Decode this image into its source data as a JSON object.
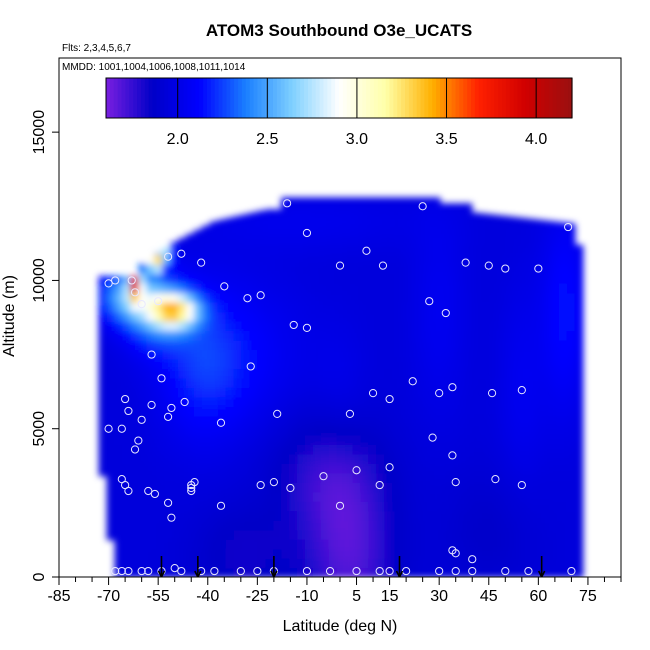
{
  "chart_data": {
    "type": "heatmap",
    "title": "ATOM3 Southbound O3e_UCATS",
    "notes": {
      "flights": "Flts: 2,3,4,5,6,7",
      "dates": "MMDD: 1001,1004,1006,1008,1011,1014"
    },
    "xlabel": "Latitude (deg N)",
    "ylabel": "Altitude (m)",
    "xlim": [
      -85,
      85
    ],
    "ylim": [
      0,
      17500
    ],
    "x_ticks": [
      -85,
      -70,
      -55,
      -40,
      -25,
      -10,
      5,
      15,
      30,
      45,
      60,
      75
    ],
    "x_minor_ticks": [
      -80,
      -75,
      -65,
      -60,
      -50,
      -45,
      -35,
      -30,
      -20,
      -15,
      -5,
      0,
      10,
      20,
      25,
      35,
      40,
      50,
      55,
      65,
      70,
      80,
      85
    ],
    "y_ticks": [
      0,
      5000,
      10000,
      15000
    ],
    "colorbar": {
      "range": [
        1.6,
        4.2
      ],
      "ticks": [
        "2.0",
        "2.5",
        "3.0",
        "3.5",
        "4.0"
      ],
      "colors": [
        "#7a1fe0",
        "#0000c8",
        "#0000ff",
        "#1a7fff",
        "#7fd0ff",
        "#ffffff",
        "#ffffa8",
        "#ffb000",
        "#ff2000",
        "#d00000",
        "#9a1010"
      ]
    },
    "profile_latitudes": [
      -54,
      -43,
      -20,
      18,
      61
    ],
    "sample_points": [
      [
        -68,
        200
      ],
      [
        -66,
        200
      ],
      [
        -64,
        200
      ],
      [
        -60,
        200
      ],
      [
        -58,
        200
      ],
      [
        -54,
        200
      ],
      [
        -50,
        300
      ],
      [
        -48,
        200
      ],
      [
        -42,
        200
      ],
      [
        -38,
        200
      ],
      [
        -30,
        200
      ],
      [
        -25,
        200
      ],
      [
        -20,
        200
      ],
      [
        -10,
        200
      ],
      [
        -3,
        200
      ],
      [
        5,
        200
      ],
      [
        12,
        200
      ],
      [
        15,
        200
      ],
      [
        20,
        200
      ],
      [
        30,
        200
      ],
      [
        35,
        200
      ],
      [
        40,
        200
      ],
      [
        50,
        200
      ],
      [
        57,
        200
      ],
      [
        70,
        200
      ],
      [
        -70,
        5000
      ],
      [
        -66,
        5000
      ],
      [
        -65,
        6000
      ],
      [
        -64,
        5600
      ],
      [
        -62,
        4300
      ],
      [
        -61,
        4600
      ],
      [
        -60,
        5300
      ],
      [
        -57,
        5800
      ],
      [
        -52,
        5400
      ],
      [
        -51,
        5700
      ],
      [
        -47,
        5900
      ],
      [
        -45,
        3100
      ],
      [
        -45,
        2900
      ],
      [
        -36,
        5200
      ],
      [
        -27,
        7100
      ],
      [
        -19,
        5500
      ],
      [
        -66,
        3300
      ],
      [
        -65,
        3100
      ],
      [
        -64,
        2900
      ],
      [
        -58,
        2900
      ],
      [
        -56,
        2800
      ],
      [
        -52,
        2500
      ],
      [
        -51,
        2000
      ],
      [
        -44,
        3200
      ],
      [
        -45,
        3000
      ],
      [
        -36,
        2400
      ],
      [
        -24,
        3100
      ],
      [
        -20,
        3200
      ],
      [
        -15,
        3000
      ],
      [
        -5,
        3400
      ],
      [
        0,
        2400
      ],
      [
        5,
        3600
      ],
      [
        12,
        3100
      ],
      [
        15,
        3700
      ],
      [
        28,
        4700
      ],
      [
        34,
        4100
      ],
      [
        35,
        3200
      ],
      [
        47,
        3300
      ],
      [
        55,
        3100
      ],
      [
        40,
        600
      ],
      [
        34,
        900
      ],
      [
        35,
        800
      ],
      [
        -68,
        10000
      ],
      [
        -70,
        9900
      ],
      [
        -63,
        10000
      ],
      [
        -62,
        9600
      ],
      [
        -60,
        9200
      ],
      [
        -55,
        9300
      ],
      [
        -52,
        10800
      ],
      [
        -48,
        10900
      ],
      [
        -42,
        10600
      ],
      [
        -35,
        9800
      ],
      [
        -28,
        9400
      ],
      [
        -24,
        9500
      ],
      [
        -16,
        12600
      ],
      [
        -10,
        11600
      ],
      [
        -14,
        8500
      ],
      [
        -10,
        8400
      ],
      [
        0,
        10500
      ],
      [
        8,
        11000
      ],
      [
        13,
        10500
      ],
      [
        25,
        12500
      ],
      [
        38,
        10600
      ],
      [
        45,
        10500
      ],
      [
        50,
        10400
      ],
      [
        60,
        10400
      ],
      [
        69,
        11800
      ],
      [
        3,
        5500
      ],
      [
        10,
        6200
      ],
      [
        15,
        6000
      ],
      [
        22,
        6600
      ],
      [
        30,
        6200
      ],
      [
        34,
        6400
      ],
      [
        46,
        6200
      ],
      [
        55,
        6300
      ],
      [
        27,
        9300
      ],
      [
        32,
        8900
      ],
      [
        -57,
        7500
      ],
      [
        -54,
        6700
      ]
    ]
  }
}
